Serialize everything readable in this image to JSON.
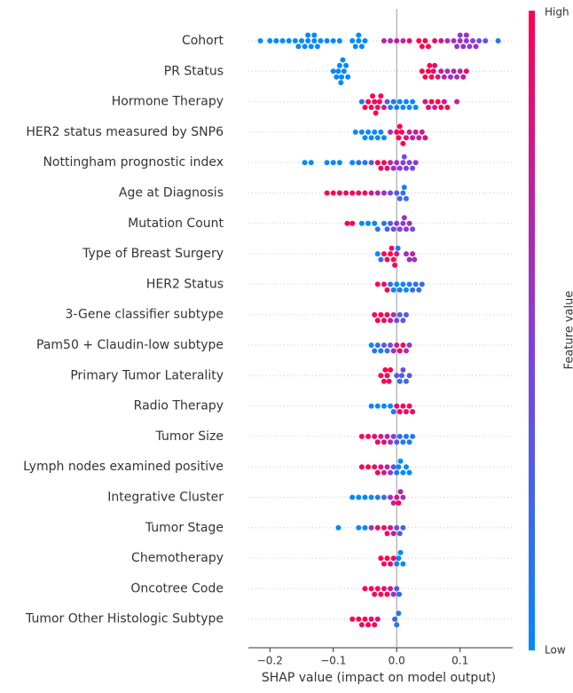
{
  "chart_data": {
    "type": "beeswarm",
    "xlabel": "SHAP value (impact on model output)",
    "colorbar_label": "Feature value",
    "colorbar_high": "High",
    "colorbar_low": "Low",
    "cmap": [
      "#008afb",
      "#8a3cd6",
      "#ff0052"
    ],
    "xlim": [
      -0.234,
      0.183
    ],
    "xticks": [
      {
        "value": -0.2,
        "label": "−0.2"
      },
      {
        "value": -0.1,
        "label": "−0.1"
      },
      {
        "value": 0,
        "label": "0.0"
      },
      0.1
    ],
    "features": [
      {
        "name": "Cohort",
        "values": [
          -0.215,
          -0.2,
          -0.19,
          -0.18,
          -0.17,
          -0.16,
          -0.155,
          -0.15,
          -0.145,
          -0.14,
          -0.14,
          -0.135,
          -0.13,
          -0.13,
          -0.125,
          -0.12,
          -0.11,
          -0.1,
          -0.09,
          -0.07,
          -0.065,
          -0.06,
          -0.06,
          -0.055,
          -0.05,
          -0.02,
          -0.01,
          0.0,
          0.01,
          0.02,
          0.035,
          0.04,
          0.045,
          0.05,
          0.06,
          0.07,
          0.08,
          0.09,
          0.095,
          0.1,
          0.1,
          0.105,
          0.11,
          0.11,
          0.115,
          0.12,
          0.125,
          0.13,
          0.14,
          0.16
        ],
        "feature_values": [
          0,
          0,
          0,
          0,
          0,
          0,
          0,
          0,
          0,
          0,
          0,
          0,
          0,
          0,
          0,
          0,
          0,
          0,
          0,
          0,
          0,
          0,
          0,
          0,
          0,
          0.7,
          0.6,
          0.8,
          0.7,
          0.9,
          1,
          1,
          1,
          1,
          0.9,
          0.8,
          0.6,
          0.6,
          0.5,
          0.6,
          0.5,
          0.6,
          0.5,
          0.6,
          0.5,
          0.5,
          0.6,
          0.4,
          0.3,
          0.1
        ]
      },
      {
        "name": "PR Status",
        "values": [
          -0.1,
          -0.095,
          -0.092,
          -0.09,
          -0.088,
          -0.087,
          -0.085,
          -0.083,
          -0.08,
          -0.077,
          0.04,
          0.045,
          0.05,
          0.052,
          0.055,
          0.058,
          0.06,
          0.065,
          0.07,
          0.075,
          0.08,
          0.085,
          0.09,
          0.095,
          0.1,
          0.105,
          0.11
        ],
        "feature_values": [
          0,
          0,
          0,
          0,
          0,
          0,
          0,
          0,
          0,
          0,
          1,
          1,
          1,
          1,
          1,
          0.9,
          0.9,
          0.8,
          0.7,
          0.7,
          0.6,
          0.6,
          0.7,
          0.6,
          0.7,
          0.8,
          0.9
        ]
      },
      {
        "name": "Hormone Therapy",
        "values": [
          -0.055,
          -0.05,
          -0.045,
          -0.04,
          -0.038,
          -0.035,
          -0.033,
          -0.03,
          -0.027,
          -0.025,
          -0.02,
          -0.015,
          -0.01,
          -0.005,
          0.0,
          0.005,
          0.01,
          0.015,
          0.02,
          0.025,
          0.03,
          0.045,
          0.05,
          0.055,
          0.06,
          0.065,
          0.07,
          0.075,
          0.08,
          0.095
        ],
        "feature_values": [
          0.1,
          1,
          1,
          1,
          1,
          1,
          1,
          1,
          0.9,
          1,
          0.8,
          0.3,
          0.1,
          0.1,
          0.1,
          0,
          0,
          0.1,
          0,
          0,
          0,
          0.8,
          0.9,
          1,
          0.7,
          1,
          1,
          0.8,
          1,
          0.7
        ]
      },
      {
        "name": "HER2 status measured by SNP6",
        "values": [
          -0.065,
          -0.055,
          -0.05,
          -0.045,
          -0.04,
          -0.035,
          -0.03,
          -0.025,
          -0.02,
          -0.01,
          0.0,
          0.003,
          0.005,
          0.008,
          0.01,
          0.015,
          0.02,
          0.025,
          0.03,
          0.035,
          0.04,
          0.045
        ],
        "feature_values": [
          0,
          0,
          0,
          0,
          0,
          0,
          0,
          0,
          0,
          0.6,
          1,
          1,
          1,
          1,
          1,
          0.9,
          0.7,
          0.7,
          0.8,
          0.7,
          0.8,
          0.9
        ]
      },
      {
        "name": "Nottingham prognostic index",
        "values": [
          -0.145,
          -0.135,
          -0.11,
          -0.1,
          -0.09,
          -0.07,
          -0.06,
          -0.05,
          -0.04,
          -0.03,
          -0.025,
          -0.02,
          -0.015,
          -0.01,
          -0.005,
          0.0,
          0.005,
          0.01,
          0.012,
          0.015,
          0.02,
          0.025,
          0.03
        ],
        "feature_values": [
          0,
          0,
          0,
          0,
          0,
          0,
          0.1,
          0.1,
          0.3,
          1,
          0.9,
          1,
          0.9,
          0.7,
          0.6,
          0.6,
          0.5,
          0.5,
          0.4,
          0.5,
          0.4,
          0.4,
          0.5
        ]
      },
      {
        "name": "Age at Diagnosis",
        "values": [
          -0.11,
          -0.1,
          -0.09,
          -0.08,
          -0.07,
          -0.06,
          -0.05,
          -0.04,
          -0.03,
          -0.02,
          -0.01,
          0.0,
          0.005,
          0.01,
          0.012,
          0.015
        ],
        "feature_values": [
          1,
          1,
          1,
          0.9,
          1,
          0.9,
          0.9,
          0.8,
          0.7,
          0.6,
          0.4,
          0.3,
          0.2,
          0.2,
          0.1,
          0.2
        ]
      },
      {
        "name": "Mutation Count",
        "values": [
          -0.078,
          -0.07,
          -0.055,
          -0.045,
          -0.035,
          -0.03,
          -0.02,
          -0.015,
          -0.01,
          -0.005,
          0.0,
          0.005,
          0.01,
          0.012,
          0.015,
          0.02,
          0.025
        ],
        "feature_values": [
          1,
          1,
          0,
          0,
          0,
          0.1,
          0.1,
          0.2,
          0.3,
          0.4,
          0.5,
          0.5,
          0.5,
          0.6,
          0.5,
          0.6,
          0.4
        ]
      },
      {
        "name": "Type of Breast Surgery",
        "values": [
          -0.03,
          -0.025,
          -0.02,
          -0.015,
          -0.01,
          -0.008,
          -0.005,
          -0.003,
          0.0,
          0.002,
          0.015,
          0.02,
          0.025,
          0.028
        ],
        "feature_values": [
          0,
          0.1,
          1,
          1,
          1,
          0.9,
          1,
          0.9,
          0.8,
          0.1,
          0.6,
          0.6,
          0.7,
          0.6
        ]
      },
      {
        "name": "HER2 Status",
        "values": [
          -0.03,
          -0.02,
          -0.015,
          -0.01,
          -0.005,
          0.0,
          0.005,
          0.01,
          0.015,
          0.02,
          0.025,
          0.03,
          0.035,
          0.04
        ],
        "feature_values": [
          1,
          0.9,
          1,
          0.2,
          0,
          0,
          0.1,
          0,
          0,
          0.1,
          0.2,
          0.2,
          0.2,
          0.2
        ]
      },
      {
        "name": "3-Gene classifier subtype",
        "values": [
          -0.035,
          -0.03,
          -0.025,
          -0.02,
          -0.015,
          -0.01,
          -0.005,
          0.0,
          0.005,
          0.01,
          0.015
        ],
        "feature_values": [
          1,
          1,
          1,
          0.9,
          1,
          0.8,
          0.6,
          0.4,
          0.3,
          0.3,
          0.3
        ]
      },
      {
        "name": "Pam50 + Claudin-low subtype",
        "values": [
          -0.04,
          -0.035,
          -0.03,
          -0.025,
          -0.02,
          -0.015,
          -0.01,
          -0.005,
          0.0,
          0.005,
          0.01,
          0.015,
          0.02
        ],
        "feature_values": [
          0,
          0.1,
          0.2,
          0.1,
          0.3,
          0.2,
          0.4,
          0.6,
          0.8,
          0.9,
          1,
          0.6,
          0.5
        ]
      },
      {
        "name": "Primary Tumor Laterality",
        "values": [
          -0.025,
          -0.02,
          -0.018,
          -0.015,
          -0.012,
          -0.01,
          0.0,
          0.005,
          0.008,
          0.01,
          0.015,
          0.02
        ],
        "feature_values": [
          1,
          1,
          1,
          1,
          0.9,
          1,
          0.3,
          0.2,
          0.3,
          0.4,
          0.2,
          0.3
        ]
      },
      {
        "name": "Radio Therapy",
        "values": [
          -0.04,
          -0.03,
          -0.02,
          -0.01,
          -0.005,
          0.0,
          0.005,
          0.01,
          0.015,
          0.02,
          0.025
        ],
        "feature_values": [
          0,
          0,
          0,
          0,
          0.2,
          0.9,
          1,
          1,
          0.9,
          1,
          0.9
        ]
      },
      {
        "name": "Tumor Size",
        "values": [
          -0.055,
          -0.045,
          -0.035,
          -0.03,
          -0.025,
          -0.02,
          -0.015,
          -0.01,
          -0.005,
          0.0,
          0.005,
          0.01,
          0.015,
          0.02,
          0.025
        ],
        "feature_values": [
          1,
          1,
          0.9,
          1,
          0.8,
          0.9,
          0.7,
          0.6,
          0.5,
          0.3,
          0.2,
          0.1,
          0.1,
          0.1,
          0.1
        ]
      },
      {
        "name": "Lymph nodes examined positive",
        "values": [
          -0.055,
          -0.045,
          -0.035,
          -0.03,
          -0.025,
          -0.02,
          -0.015,
          -0.01,
          -0.005,
          0.0,
          0.003,
          0.006,
          0.01,
          0.015,
          0.02
        ],
        "feature_values": [
          1,
          1,
          0.9,
          1,
          0.8,
          0.8,
          0.7,
          0.5,
          0.3,
          0.1,
          0,
          0,
          0,
          0,
          0
        ]
      },
      {
        "name": "Integrative Cluster",
        "values": [
          -0.07,
          -0.06,
          -0.05,
          -0.04,
          -0.03,
          -0.02,
          -0.01,
          -0.005,
          0.0,
          0.003,
          0.006,
          0.01
        ],
        "feature_values": [
          0,
          0,
          0,
          0,
          0.1,
          0.2,
          0.6,
          0.7,
          0.8,
          1,
          0.7,
          0.6
        ]
      },
      {
        "name": "Tumor Stage",
        "values": [
          -0.092,
          -0.06,
          -0.05,
          -0.04,
          -0.03,
          -0.02,
          -0.015,
          -0.01,
          -0.005,
          0.0,
          0.005,
          0.01
        ],
        "feature_values": [
          0,
          0,
          0,
          0.6,
          1,
          0.9,
          1,
          0.8,
          0.7,
          0.4,
          0.3,
          0.2
        ]
      },
      {
        "name": "Chemotherapy",
        "values": [
          -0.025,
          -0.02,
          -0.015,
          -0.01,
          -0.005,
          0.0,
          0.003,
          0.006,
          0.01
        ],
        "feature_values": [
          1,
          1,
          1,
          0.9,
          1,
          0.1,
          0,
          0,
          0
        ]
      },
      {
        "name": "Oncotree Code",
        "values": [
          -0.05,
          -0.04,
          -0.035,
          -0.03,
          -0.025,
          -0.02,
          -0.015,
          -0.01,
          -0.005,
          0.0,
          0.004
        ],
        "feature_values": [
          1,
          1,
          0.9,
          1,
          1,
          0.9,
          1,
          0.8,
          0.6,
          0.3,
          0.2
        ]
      },
      {
        "name": "Tumor Other Histologic Subtype",
        "values": [
          -0.07,
          -0.06,
          -0.055,
          -0.05,
          -0.045,
          -0.04,
          -0.035,
          -0.03,
          -0.003,
          0.0,
          0.003
        ],
        "feature_values": [
          1,
          1,
          0.9,
          1,
          1,
          0.9,
          1,
          0.9,
          0.2,
          0.1,
          0.1
        ]
      }
    ]
  }
}
